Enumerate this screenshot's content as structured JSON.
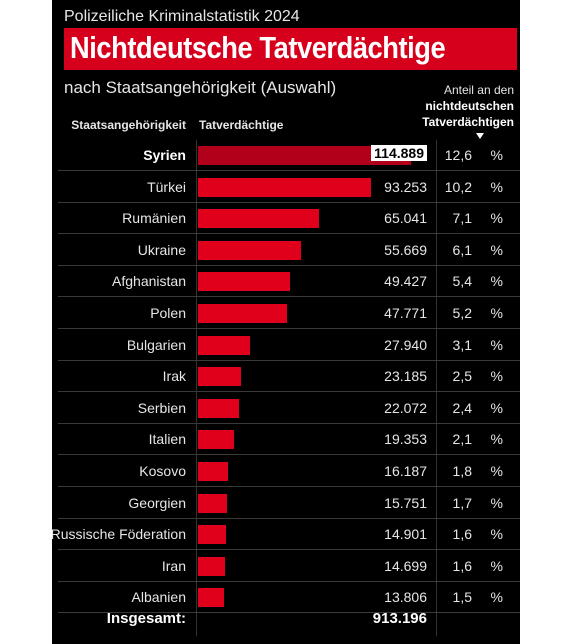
{
  "header": {
    "supertitle": "Polizeiliche Kriminalstatistik 2024",
    "title": "Nichtdeutsche Tatverdächtige",
    "subtitle": "nach Staatsangehörigkeit (Auswahl)",
    "share_header_line1": "Anteil an den",
    "share_header_line2": "nichtdeutschen",
    "share_header_line3": "Tatverdächtigen",
    "col_country": "Staatsangehörigkeit",
    "col_suspects": "Tatverdächtige"
  },
  "colors": {
    "accent": "#d6001c",
    "bar": "#e0001b",
    "background": "#000000"
  },
  "chart_data": {
    "type": "bar",
    "orientation": "horizontal",
    "title": "Nichtdeutsche Tatverdächtige",
    "categories": [
      "Syrien",
      "Türkei",
      "Rumänien",
      "Ukraine",
      "Afghanistan",
      "Polen",
      "Bulgarien",
      "Irak",
      "Serbien",
      "Italien",
      "Kosovo",
      "Georgien",
      "Russische Föderation",
      "Iran",
      "Albanien"
    ],
    "values": [
      114889,
      93253,
      65041,
      55669,
      49427,
      47771,
      27940,
      23185,
      22072,
      19353,
      16187,
      15751,
      14901,
      14699,
      13806
    ],
    "value_labels": [
      "114.889",
      "93.253",
      "65.041",
      "55.669",
      "49.427",
      "47.771",
      "27.940",
      "23.185",
      "22.072",
      "19.353",
      "16.187",
      "15.751",
      "14.901",
      "14.699",
      "13.806"
    ],
    "share_labels": [
      "12,6",
      "10,2",
      "7,1",
      "6,1",
      "5,4",
      "5,2",
      "3,1",
      "2,5",
      "2,4",
      "2,1",
      "1,8",
      "1,7",
      "1,6",
      "1,6",
      "1,5"
    ],
    "percent_sign": "%",
    "total_label": "Insgesamt:",
    "total_value": "913.196"
  }
}
